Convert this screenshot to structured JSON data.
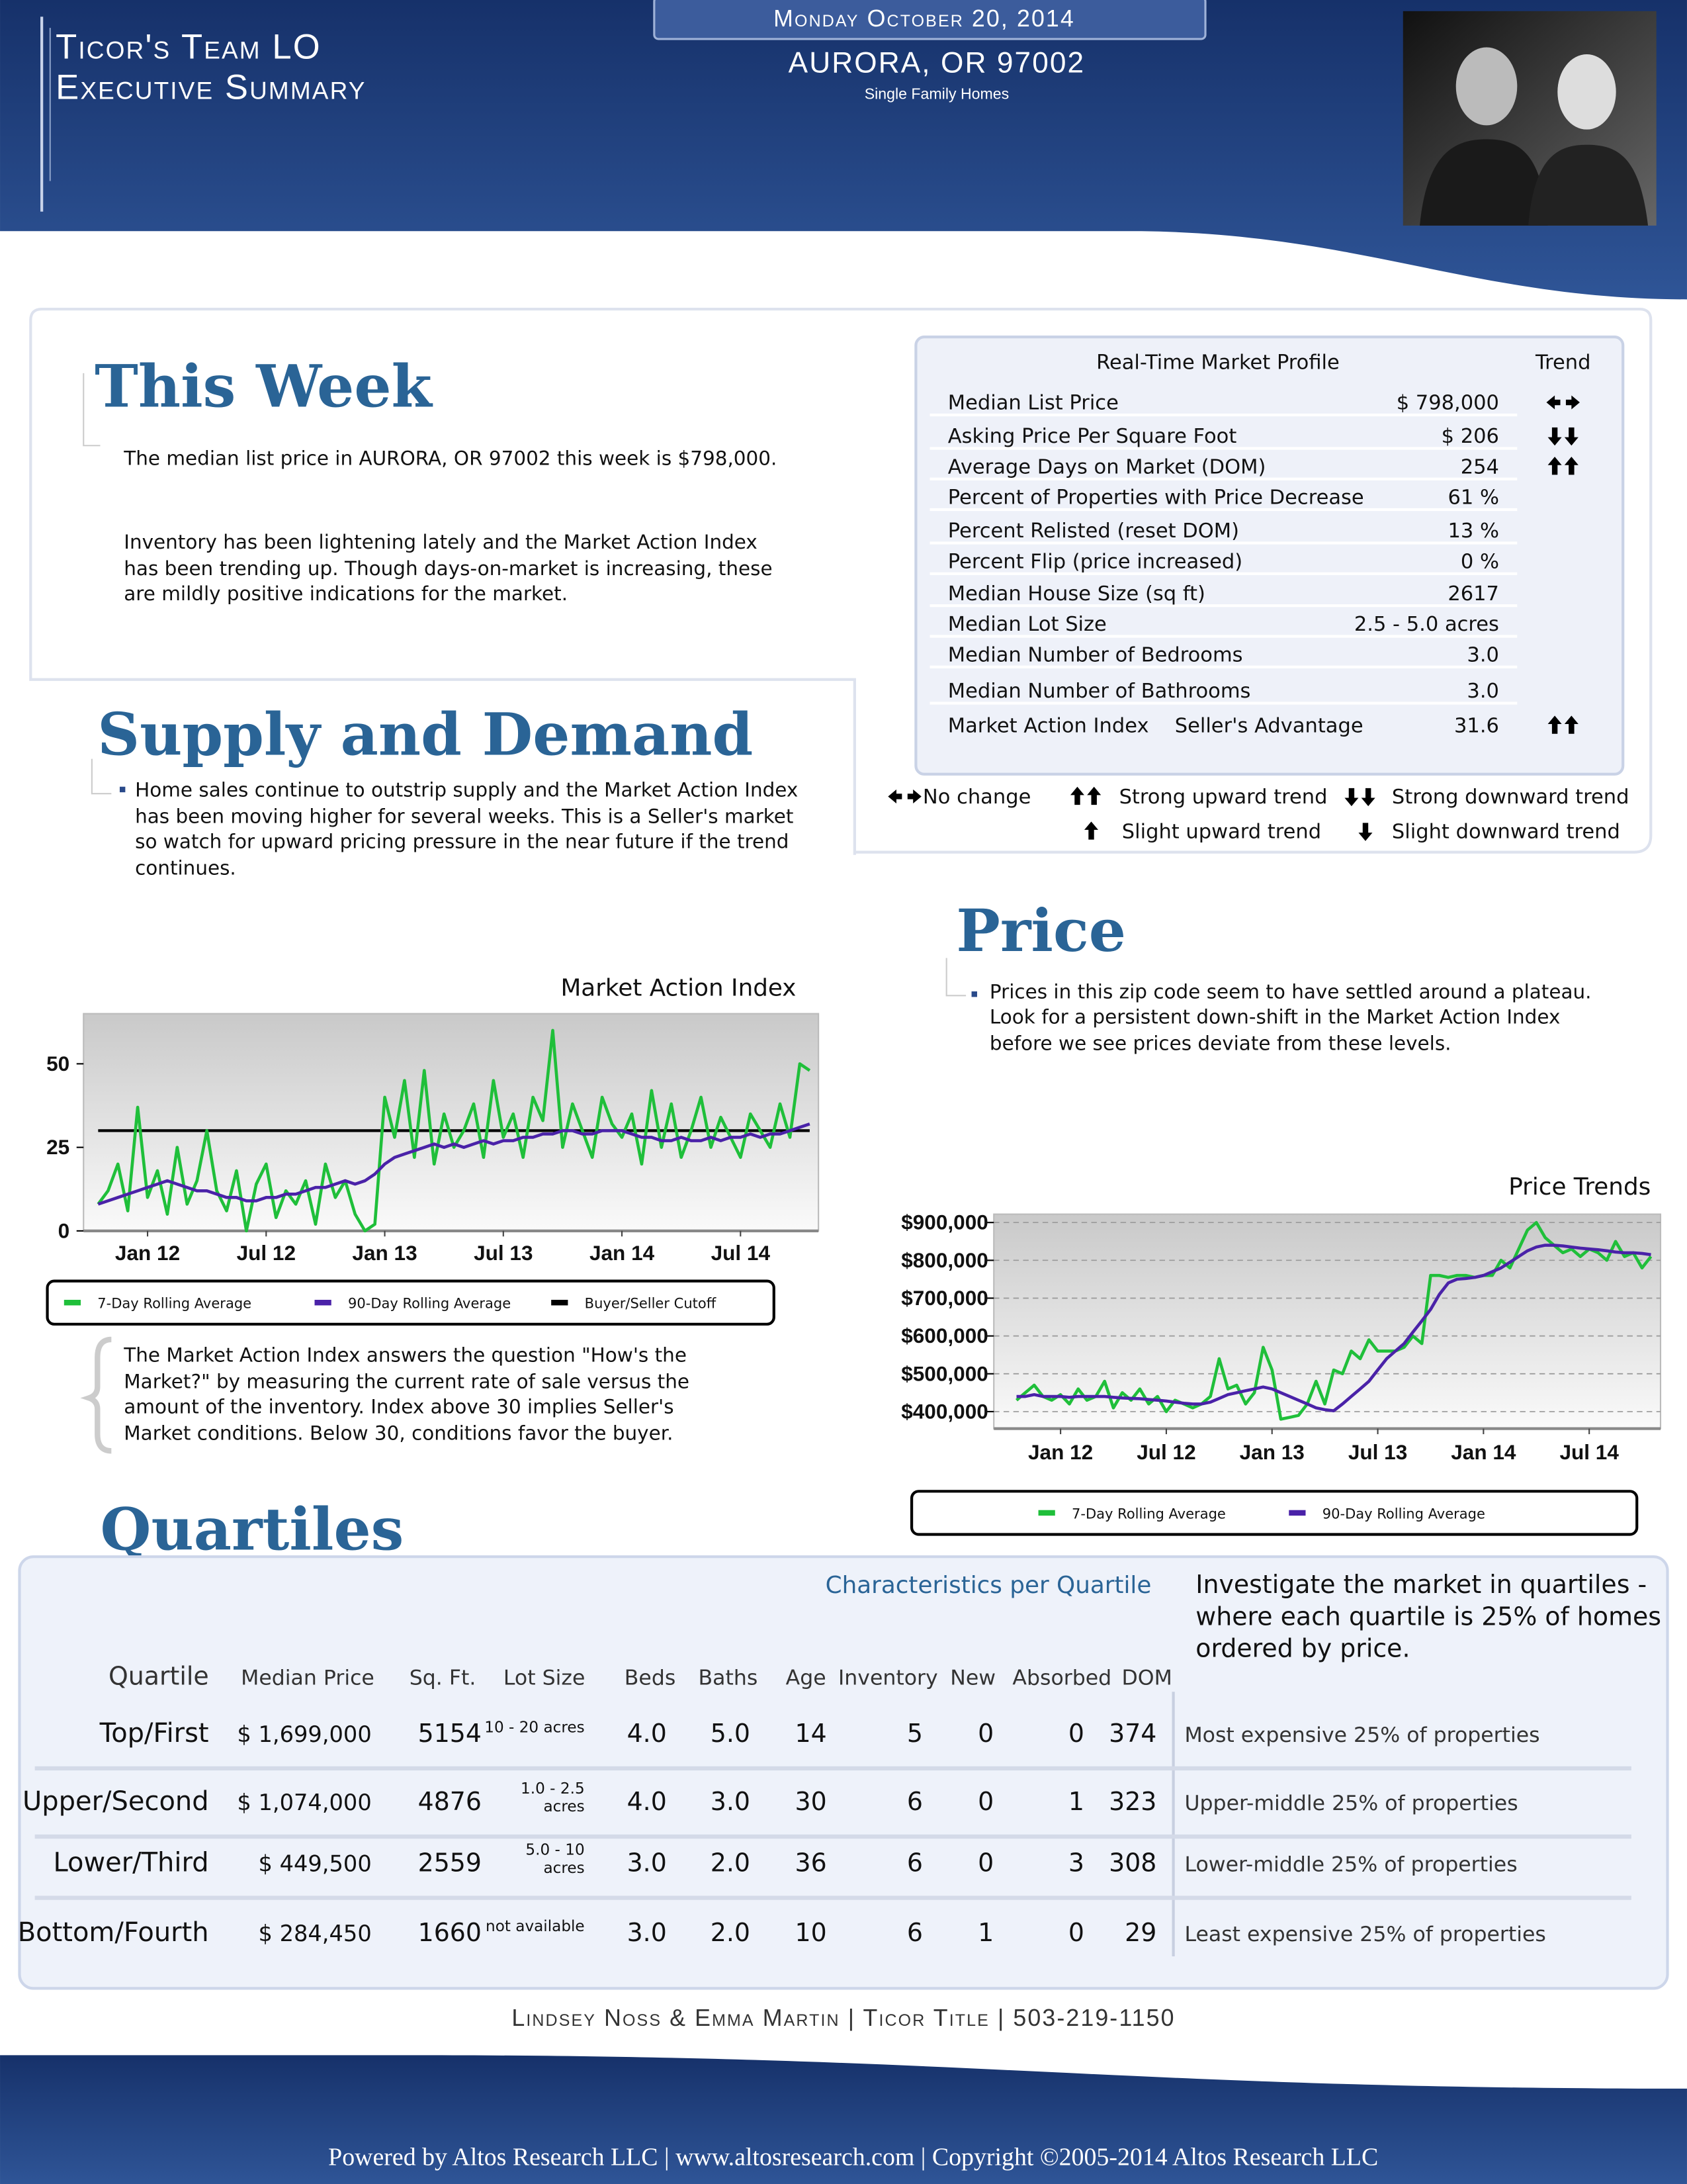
{
  "header": {
    "title_lines": [
      "Ticor's Team LO",
      "Executive Summary"
    ],
    "date": "Monday October 20, 2014",
    "location": "AURORA, OR 97002",
    "property_type": "Single Family Homes"
  },
  "this_week": {
    "heading": "This Week",
    "lines": [
      "The median list price in AURORA, OR 97002 this week is $798,000.",
      "Inventory has been lightening lately and the Market Action Index",
      "has been trending up. Though days-on-market is increasing, these",
      "are mildly positive indications for the market."
    ]
  },
  "market_profile": {
    "title": "Real-Time Market Profile",
    "trend_header": "Trend",
    "rows": [
      {
        "label": "Median List Price",
        "value": "$ 798,000"
      },
      {
        "label": "Asking Price Per Square Foot",
        "value": "$ 206"
      },
      {
        "label": "Average Days on Market (DOM)",
        "value": "254"
      },
      {
        "label": "Percent of Properties with Price Decrease",
        "value": "61 %"
      },
      {
        "label": "Percent Relisted (reset DOM)",
        "value": "13 %"
      },
      {
        "label": "Percent Flip (price increased)",
        "value": "0 %"
      },
      {
        "label": "Median House Size (sq ft)",
        "value": "2617"
      },
      {
        "label": "Median Lot Size",
        "value": "2.5 - 5.0 acres"
      },
      {
        "label": "Median Number of Bedrooms",
        "value": "3.0"
      },
      {
        "label": "Median Number of Bathrooms",
        "value": "3.0"
      },
      {
        "label": "Market Action Index",
        "note": "Seller's Advantage",
        "value": "31.6"
      }
    ],
    "legend": [
      "No change",
      "Strong upward trend",
      "Strong downward trend",
      "Slight upward trend",
      "Slight downward trend"
    ]
  },
  "supply_demand": {
    "heading": "Supply and Demand",
    "lines": [
      "Home sales continue to outstrip supply and the Market Action Index",
      "has been moving higher for several weeks.  This is a Seller's market",
      "so watch for upward pricing pressure in the near future if the trend",
      "continues."
    ]
  },
  "mai_note": {
    "lines": [
      "The Market Action Index answers the question \"How's the",
      "Market?\" by measuring the current rate of sale versus the",
      "amount of the inventory.  Index above 30 implies Seller's",
      "Market conditions. Below 30, conditions favor the buyer."
    ]
  },
  "price": {
    "heading": "Price",
    "lines": [
      "Prices in this zip code seem to have settled around a plateau.",
      "Look for a persistent down-shift in the Market Action Index",
      "before we see prices deviate from these levels."
    ]
  },
  "chart_data": [
    {
      "type": "line",
      "title": "Market Action Index",
      "categories": [
        null,
        null,
        null,
        null,
        null,
        "Jan 12",
        null,
        null,
        null,
        null,
        null,
        null,
        null,
        null,
        null,
        null,
        null,
        "Jul 12",
        null,
        null,
        null,
        null,
        null,
        null,
        null,
        null,
        null,
        null,
        null,
        "Jan 13",
        null,
        null,
        null,
        null,
        null,
        null,
        null,
        null,
        null,
        null,
        null,
        "Jul 13",
        null,
        null,
        null,
        null,
        null,
        null,
        null,
        null,
        null,
        null,
        null,
        "Jan 14",
        null,
        null,
        null,
        null,
        null,
        null,
        null,
        null,
        null,
        null,
        null,
        "Jul 14",
        null,
        null,
        null,
        null,
        null,
        null,
        null
      ],
      "series": [
        {
          "name": "7-Day Rolling Average",
          "color": "#1fbf3a",
          "values": [
            8,
            12,
            20,
            6,
            37,
            10,
            18,
            5,
            25,
            8,
            15,
            30,
            12,
            6,
            18,
            0,
            14,
            20,
            4,
            12,
            8,
            15,
            2,
            20,
            10,
            15,
            5,
            0,
            2,
            40,
            28,
            45,
            22,
            48,
            20,
            35,
            25,
            30,
            38,
            22,
            45,
            28,
            35,
            22,
            40,
            33,
            60,
            25,
            38,
            30,
            22,
            40,
            32,
            28,
            35,
            20,
            42,
            25,
            38,
            22,
            30,
            40,
            25,
            34,
            28,
            22,
            35,
            30,
            25,
            38,
            28,
            50,
            48
          ]
        },
        {
          "name": "90-Day Rolling Average",
          "color": "#4a22a8",
          "values": [
            8,
            9,
            10,
            11,
            12,
            13,
            14,
            15,
            14,
            13,
            12,
            12,
            11,
            10,
            10,
            9,
            9,
            10,
            10,
            11,
            11,
            12,
            13,
            13,
            14,
            15,
            14,
            15,
            17,
            20,
            22,
            23,
            24,
            25,
            26,
            25,
            26,
            25,
            26,
            27,
            26,
            27,
            27,
            28,
            28,
            29,
            29,
            30,
            30,
            29,
            29,
            30,
            30,
            30,
            29,
            28,
            28,
            27,
            27,
            28,
            27,
            27,
            28,
            27,
            28,
            28,
            29,
            28,
            29,
            29,
            30,
            31,
            32
          ]
        }
      ],
      "reference_line": {
        "name": "Buyer/Seller Cutoff",
        "value": 30,
        "color": "#000000"
      },
      "ylim": [
        0,
        65
      ],
      "yticks": [
        0,
        25,
        50
      ],
      "grid": false
    },
    {
      "type": "line",
      "title": "Price Trends",
      "categories": [
        null,
        null,
        null,
        null,
        null,
        "Jan 12",
        null,
        null,
        null,
        null,
        null,
        null,
        null,
        null,
        null,
        null,
        null,
        "Jul 12",
        null,
        null,
        null,
        null,
        null,
        null,
        null,
        null,
        null,
        null,
        null,
        "Jan 13",
        null,
        null,
        null,
        null,
        null,
        null,
        null,
        null,
        null,
        null,
        null,
        "Jul 13",
        null,
        null,
        null,
        null,
        null,
        null,
        null,
        null,
        null,
        null,
        null,
        "Jan 14",
        null,
        null,
        null,
        null,
        null,
        null,
        null,
        null,
        null,
        null,
        null,
        "Jul 14",
        null,
        null,
        null,
        null,
        null,
        null,
        null
      ],
      "series": [
        {
          "name": "7-Day Rolling Average",
          "color": "#1fbf3a",
          "values": [
            430000,
            450000,
            470000,
            440000,
            430000,
            445000,
            420000,
            460000,
            430000,
            440000,
            480000,
            410000,
            450000,
            430000,
            460000,
            420000,
            440000,
            400000,
            430000,
            420000,
            410000,
            420000,
            440000,
            540000,
            460000,
            470000,
            420000,
            450000,
            570000,
            510000,
            380000,
            385000,
            390000,
            420000,
            480000,
            420000,
            510000,
            500000,
            560000,
            540000,
            590000,
            560000,
            560000,
            560000,
            570000,
            600000,
            580000,
            760000,
            760000,
            755000,
            760000,
            760000,
            755000,
            760000,
            760000,
            800000,
            780000,
            830000,
            880000,
            900000,
            860000,
            840000,
            820000,
            830000,
            810000,
            830000,
            820000,
            800000,
            850000,
            810000,
            820000,
            780000,
            810000
          ]
        },
        {
          "name": "90-Day Rolling Average",
          "color": "#4a22a8",
          "values": [
            440000,
            440000,
            445000,
            440000,
            440000,
            440000,
            438000,
            440000,
            440000,
            440000,
            440000,
            438000,
            436000,
            435000,
            434000,
            432000,
            430000,
            428000,
            425000,
            422000,
            420000,
            420000,
            425000,
            435000,
            445000,
            450000,
            455000,
            460000,
            465000,
            460000,
            450000,
            440000,
            430000,
            420000,
            410000,
            405000,
            402000,
            420000,
            440000,
            460000,
            480000,
            510000,
            540000,
            560000,
            580000,
            610000,
            640000,
            670000,
            710000,
            740000,
            750000,
            752000,
            755000,
            760000,
            770000,
            780000,
            795000,
            810000,
            825000,
            835000,
            840000,
            840000,
            838000,
            835000,
            832000,
            830000,
            828000,
            825000,
            822000,
            820000,
            820000,
            818000,
            815000
          ]
        }
      ],
      "ylim": [
        355000,
        922000
      ],
      "yticks": [
        {
          "value": 400000,
          "label": "$400,000"
        },
        {
          "value": 500000,
          "label": "$500,000"
        },
        {
          "value": 600000,
          "label": "$600,000"
        },
        {
          "value": 700000,
          "label": "$700,000"
        },
        {
          "value": 800000,
          "label": "$800,000"
        },
        {
          "value": 900000,
          "label": "$900,000"
        }
      ],
      "grid": true
    }
  ],
  "quartiles": {
    "heading": "Quartiles",
    "caption": "Characteristics per Quartile",
    "side_lines": [
      "Investigate the market in quartiles -",
      "where each quartile is 25% of homes",
      "ordered by price."
    ],
    "columns": [
      "Quartile",
      "Median Price",
      "Sq. Ft.",
      "Lot Size",
      "Beds",
      "Baths",
      "Age",
      "Inventory",
      "New",
      "Absorbed",
      "DOM"
    ],
    "rows": [
      {
        "quartile": "Top/First",
        "price": "$ 1,699,000",
        "sqft": "5154",
        "lot": [
          "10 - 20 acres"
        ],
        "beds": "4.0",
        "baths": "5.0",
        "age": "14",
        "inventory": "5",
        "new": "0",
        "absorbed": "0",
        "dom": "374",
        "description": "Most expensive 25% of properties"
      },
      {
        "quartile": "Upper/Second",
        "price": "$ 1,074,000",
        "sqft": "4876",
        "lot": [
          "1.0 - 2.5",
          "acres"
        ],
        "beds": "4.0",
        "baths": "3.0",
        "age": "30",
        "inventory": "6",
        "new": "0",
        "absorbed": "1",
        "dom": "323",
        "description": "Upper-middle 25% of properties"
      },
      {
        "quartile": "Lower/Third",
        "price": "$ 449,500",
        "sqft": "2559",
        "lot": [
          "5.0 - 10",
          "acres"
        ],
        "beds": "3.0",
        "baths": "2.0",
        "age": "36",
        "inventory": "6",
        "new": "0",
        "absorbed": "3",
        "dom": "308",
        "description": "Lower-middle 25% of properties"
      },
      {
        "quartile": "Bottom/Fourth",
        "price": "$ 284,450",
        "sqft": "1660",
        "lot": [
          "not available"
        ],
        "beds": "3.0",
        "baths": "2.0",
        "age": "10",
        "inventory": "6",
        "new": "1",
        "absorbed": "0",
        "dom": "29",
        "description": "Least expensive 25% of properties"
      }
    ]
  },
  "footer": {
    "contact": "Lindsey Noss & Emma Martin | Ticor Title | 503-219-1150",
    "copyright": "Powered by Altos Research LLC | www.altosresearch.com | Copyright ©2005-2014 Altos Research LLC"
  }
}
